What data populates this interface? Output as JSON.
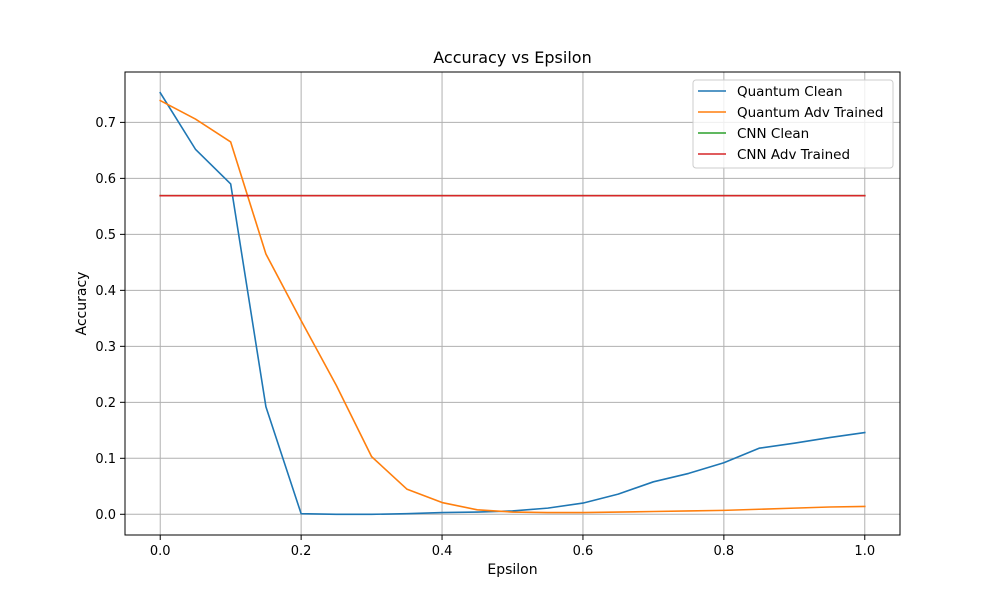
{
  "chart_data": {
    "type": "line",
    "title": "Accuracy vs Epsilon",
    "xlabel": "Epsilon",
    "ylabel": "Accuracy",
    "xlim": [
      -0.05,
      1.05
    ],
    "ylim": [
      -0.037,
      0.79
    ],
    "xticks": [
      0.0,
      0.2,
      0.4,
      0.6,
      0.8,
      1.0
    ],
    "xtick_labels": [
      "0.0",
      "0.2",
      "0.4",
      "0.6",
      "0.8",
      "1.0"
    ],
    "yticks": [
      0.0,
      0.1,
      0.2,
      0.3,
      0.4,
      0.5,
      0.6,
      0.7
    ],
    "ytick_labels": [
      "0.0",
      "0.1",
      "0.2",
      "0.3",
      "0.4",
      "0.5",
      "0.6",
      "0.7"
    ],
    "grid": true,
    "legend_position": "top-right",
    "x": [
      0.0,
      0.05,
      0.1,
      0.15,
      0.2,
      0.25,
      0.3,
      0.35,
      0.4,
      0.45,
      0.5,
      0.55,
      0.6,
      0.65,
      0.7,
      0.75,
      0.8,
      0.85,
      0.9,
      0.95,
      1.0
    ],
    "series": [
      {
        "name": "Quantum Clean",
        "color": "#1f77b4",
        "values": [
          0.753,
          0.652,
          0.59,
          0.192,
          0.001,
          0.0,
          0.0,
          0.001,
          0.003,
          0.004,
          0.006,
          0.011,
          0.02,
          0.036,
          0.058,
          0.073,
          0.092,
          0.118,
          0.127,
          0.137,
          0.146
        ]
      },
      {
        "name": "Quantum Adv Trained",
        "color": "#ff7f0e",
        "values": [
          0.739,
          0.706,
          0.665,
          0.465,
          0.346,
          0.23,
          0.103,
          0.045,
          0.021,
          0.008,
          0.004,
          0.003,
          0.003,
          0.004,
          0.005,
          0.006,
          0.007,
          0.009,
          0.011,
          0.013,
          0.014
        ]
      },
      {
        "name": "CNN Clean",
        "color": "#2ca02c",
        "values": [
          0.569,
          0.569,
          0.569,
          0.569,
          0.569,
          0.569,
          0.569,
          0.569,
          0.569,
          0.569,
          0.569,
          0.569,
          0.569,
          0.569,
          0.569,
          0.569,
          0.569,
          0.569,
          0.569,
          0.569,
          0.569
        ]
      },
      {
        "name": "CNN Adv Trained",
        "color": "#d62728",
        "values": [
          0.569,
          0.569,
          0.569,
          0.569,
          0.569,
          0.569,
          0.569,
          0.569,
          0.569,
          0.569,
          0.569,
          0.569,
          0.569,
          0.569,
          0.569,
          0.569,
          0.569,
          0.569,
          0.569,
          0.569,
          0.569
        ]
      }
    ]
  }
}
